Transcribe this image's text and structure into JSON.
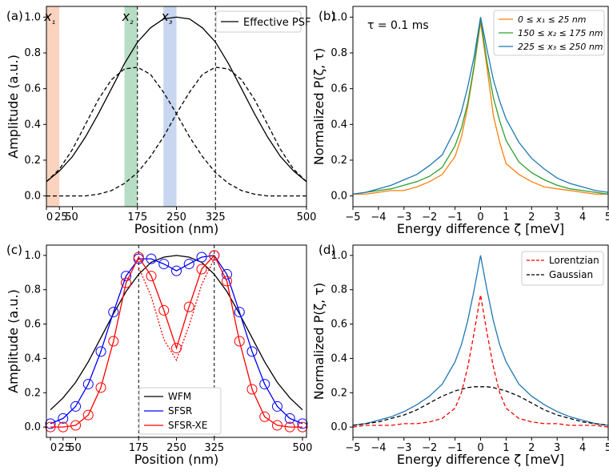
{
  "panel_labels": [
    "(a)",
    "(b)",
    "(c)",
    "(d)"
  ],
  "colors": {
    "orange": "#ff7f0e",
    "green": "#2ca02c",
    "blue": "#1f77b4",
    "black": "#000000",
    "sfsr_blue": "#0000ff",
    "red": "#ff0000",
    "band_x1": "#f7c4a8",
    "band_x2": "#9fd1b0",
    "band_x3": "#b5c8ea"
  },
  "chart_data": [
    {
      "panel": "(a)",
      "type": "line",
      "xlabel": "Position (nm)",
      "ylabel": "Amplitude (a.u.)",
      "xlim": [
        0,
        500
      ],
      "ylim": [
        -0.06,
        1.06
      ],
      "x_ticks": [
        0,
        25,
        50,
        175,
        250,
        325,
        500
      ],
      "x_tick_labels": [
        "0",
        "25",
        "50",
        "175",
        "250",
        "325",
        "500"
      ],
      "y_ticks": [
        0.0,
        0.2,
        0.4,
        0.6,
        0.8,
        1.0
      ],
      "y_tick_labels": [
        "0.0",
        "0.2",
        "0.4",
        "0.6",
        "0.8",
        "1.0"
      ],
      "legend": {
        "position": "top-right",
        "entries": [
          "Effective PSF"
        ]
      },
      "bands": [
        {
          "label": "x₁",
          "from": 0,
          "to": 25
        },
        {
          "label": "x₂",
          "from": 150,
          "to": 175
        },
        {
          "label": "x₃",
          "from": 225,
          "to": 250
        }
      ],
      "vlines": [
        175,
        325
      ],
      "series": [
        {
          "name": "Effective PSF",
          "style": "solid",
          "x": [
            0,
            25,
            50,
            75,
            100,
            125,
            150,
            175,
            200,
            225,
            250,
            275,
            300,
            325,
            350,
            375,
            400,
            425,
            450,
            475,
            500
          ],
          "y": [
            0.08,
            0.14,
            0.22,
            0.33,
            0.46,
            0.6,
            0.74,
            0.86,
            0.94,
            0.99,
            1.0,
            0.99,
            0.94,
            0.86,
            0.74,
            0.6,
            0.46,
            0.33,
            0.22,
            0.14,
            0.08
          ]
        },
        {
          "style": "dashed",
          "x": [
            0,
            25,
            50,
            75,
            100,
            125,
            150,
            175,
            200,
            225,
            250,
            275,
            300,
            325,
            350,
            375,
            400,
            425,
            450,
            475,
            500
          ],
          "y": [
            0.08,
            0.15,
            0.26,
            0.4,
            0.54,
            0.65,
            0.71,
            0.72,
            0.68,
            0.58,
            0.46,
            0.33,
            0.22,
            0.13,
            0.07,
            0.03,
            0.01,
            0.0,
            0.0,
            0.0,
            0.0
          ]
        },
        {
          "style": "dashed",
          "x": [
            0,
            25,
            50,
            75,
            100,
            125,
            150,
            175,
            200,
            225,
            250,
            275,
            300,
            325,
            350,
            375,
            400,
            425,
            450,
            475,
            500
          ],
          "y": [
            0.0,
            0.0,
            0.0,
            0.0,
            0.01,
            0.03,
            0.07,
            0.13,
            0.22,
            0.33,
            0.46,
            0.58,
            0.68,
            0.72,
            0.71,
            0.65,
            0.54,
            0.4,
            0.26,
            0.15,
            0.08
          ]
        }
      ]
    },
    {
      "panel": "(b)",
      "type": "line",
      "xlabel": "Energy difference ζ [meV]",
      "ylabel": "Normalized P(ζ, τ)",
      "annotation": "τ = 0.1 ms",
      "xlim": [
        -5,
        5
      ],
      "ylim": [
        -0.06,
        1.06
      ],
      "x_ticks": [
        -5,
        -4,
        -3,
        -2,
        -1,
        0,
        1,
        2,
        3,
        4,
        5
      ],
      "x_tick_labels": [
        "−5",
        "−4",
        "−3",
        "−2",
        "−1",
        "0",
        "1",
        "2",
        "3",
        "4",
        "5"
      ],
      "y_ticks": [
        0.0,
        0.2,
        0.4,
        0.6,
        0.8,
        1.0
      ],
      "y_tick_labels": [
        "0.0",
        "0.2",
        "0.4",
        "0.6",
        "0.8",
        "1.0"
      ],
      "legend": {
        "position": "top-right"
      },
      "series": [
        {
          "name": "0 ≤ x₁ ≤ 25 nm",
          "color": "#ff7f0e",
          "x": [
            -5,
            -4.5,
            -4,
            -3.5,
            -3,
            -2.5,
            -2,
            -1.5,
            -1,
            -0.75,
            -0.5,
            -0.25,
            0,
            0.25,
            0.5,
            0.75,
            1,
            1.5,
            2,
            2.5,
            3,
            3.5,
            4,
            4.5,
            5
          ],
          "y": [
            0.01,
            0.01,
            0.02,
            0.03,
            0.03,
            0.05,
            0.08,
            0.12,
            0.22,
            0.33,
            0.5,
            0.72,
            0.97,
            0.72,
            0.45,
            0.3,
            0.18,
            0.12,
            0.08,
            0.05,
            0.04,
            0.03,
            0.02,
            0.01,
            0.01
          ]
        },
        {
          "name": "150 ≤ x₂ ≤ 175 nm",
          "color": "#2ca02c",
          "x": [
            -5,
            -4.5,
            -4,
            -3.5,
            -3,
            -2.5,
            -2,
            -1.5,
            -1,
            -0.75,
            -0.5,
            -0.25,
            0,
            0.25,
            0.5,
            0.75,
            1,
            1.5,
            2,
            2.5,
            3,
            3.5,
            4,
            4.5,
            5
          ],
          "y": [
            0.01,
            0.02,
            0.03,
            0.04,
            0.06,
            0.08,
            0.11,
            0.16,
            0.28,
            0.38,
            0.52,
            0.73,
            0.99,
            0.75,
            0.55,
            0.42,
            0.31,
            0.19,
            0.13,
            0.09,
            0.06,
            0.04,
            0.03,
            0.02,
            0.01
          ]
        },
        {
          "name": "225 ≤ x₃ ≤ 250 nm",
          "color": "#1f77b4",
          "x": [
            -5,
            -4.5,
            -4,
            -3.5,
            -3,
            -2.5,
            -2,
            -1.5,
            -1,
            -0.75,
            -0.5,
            -0.25,
            0,
            0.25,
            0.5,
            0.75,
            1,
            1.5,
            2,
            2.5,
            3,
            3.5,
            4,
            4.5,
            5
          ],
          "y": [
            0.01,
            0.02,
            0.04,
            0.06,
            0.09,
            0.12,
            0.17,
            0.23,
            0.37,
            0.47,
            0.61,
            0.78,
            1.0,
            0.82,
            0.65,
            0.53,
            0.43,
            0.3,
            0.21,
            0.15,
            0.1,
            0.07,
            0.05,
            0.03,
            0.02
          ]
        }
      ]
    },
    {
      "panel": "(c)",
      "type": "line",
      "xlabel": "Position (nm)",
      "ylabel": "Amplitude (a.u.)",
      "xlim": [
        -8,
        508
      ],
      "ylim": [
        -0.06,
        1.06
      ],
      "x_ticks": [
        0,
        25,
        50,
        175,
        250,
        325,
        500
      ],
      "x_tick_labels": [
        "0",
        "25",
        "50",
        "175",
        "250",
        "325",
        "500"
      ],
      "y_ticks": [
        0.0,
        0.2,
        0.4,
        0.6,
        0.8,
        1.0
      ],
      "y_tick_labels": [
        "0.0",
        "0.2",
        "0.4",
        "0.6",
        "0.8",
        "1.0"
      ],
      "legend": {
        "position": "bottom-center",
        "entries": [
          "WFM",
          "SFSR",
          "SFSR-XE"
        ]
      },
      "vlines": [
        175,
        325
      ],
      "series": [
        {
          "name": "WFM",
          "color": "#000000",
          "x": [
            0,
            25,
            50,
            75,
            100,
            125,
            150,
            175,
            200,
            225,
            250,
            275,
            300,
            325,
            350,
            375,
            400,
            425,
            450,
            475,
            500
          ],
          "y": [
            0.1,
            0.17,
            0.26,
            0.38,
            0.52,
            0.66,
            0.79,
            0.89,
            0.96,
            0.99,
            1.0,
            0.99,
            0.96,
            0.89,
            0.79,
            0.66,
            0.52,
            0.38,
            0.26,
            0.17,
            0.1
          ]
        },
        {
          "name": "SFSR",
          "color": "#0000ff",
          "markers": "circle",
          "x": [
            0,
            25,
            50,
            75,
            100,
            125,
            150,
            175,
            200,
            225,
            250,
            275,
            300,
            325,
            350,
            375,
            400,
            425,
            450,
            475,
            500
          ],
          "y": [
            0.02,
            0.05,
            0.12,
            0.25,
            0.44,
            0.67,
            0.88,
            0.98,
            0.98,
            0.95,
            0.91,
            0.95,
            0.99,
            1.0,
            0.89,
            0.67,
            0.44,
            0.25,
            0.12,
            0.05,
            0.02
          ]
        },
        {
          "name": "SFSR-XE",
          "color": "#ff0000",
          "markers": "circle",
          "x": [
            0,
            25,
            50,
            75,
            100,
            125,
            150,
            175,
            200,
            225,
            250,
            275,
            300,
            325,
            350,
            375,
            400,
            425,
            450,
            475,
            500
          ],
          "y": [
            0.0,
            0.0,
            0.01,
            0.07,
            0.23,
            0.5,
            0.84,
            0.99,
            0.88,
            0.68,
            0.46,
            0.7,
            0.92,
            1.0,
            0.85,
            0.5,
            0.22,
            0.06,
            0.01,
            0.0,
            0.0
          ]
        },
        {
          "style": "dotted",
          "color": "#ff0000",
          "x": [
            175,
            200,
            225,
            250,
            275,
            300,
            325
          ],
          "y": [
            0.93,
            0.76,
            0.51,
            0.39,
            0.59,
            0.83,
            0.98
          ]
        }
      ]
    },
    {
      "panel": "(d)",
      "type": "line",
      "xlabel": "Energy difference ζ [meV]",
      "ylabel": "Normalized P(ζ, τ)",
      "xlim": [
        -5,
        5
      ],
      "ylim": [
        -0.06,
        1.06
      ],
      "x_ticks": [
        -5,
        -4,
        -3,
        -2,
        -1,
        0,
        1,
        2,
        3,
        4,
        5
      ],
      "x_tick_labels": [
        "−5",
        "−4",
        "−3",
        "−2",
        "−1",
        "0",
        "1",
        "2",
        "3",
        "4",
        "5"
      ],
      "y_ticks": [
        0.0,
        0.2,
        0.4,
        0.6,
        0.8,
        1.0
      ],
      "y_tick_labels": [
        "0.0",
        "0.2",
        "0.4",
        "0.6",
        "0.8",
        "1.0"
      ],
      "legend": {
        "position": "top-right",
        "entries": [
          "Lorentzian",
          "Gaussian"
        ]
      },
      "series": [
        {
          "color": "#1f77b4",
          "style": "solid",
          "x": [
            -5,
            -4.5,
            -4,
            -3.5,
            -3,
            -2.5,
            -2,
            -1.5,
            -1,
            -0.75,
            -0.5,
            -0.25,
            0,
            0.25,
            0.5,
            0.75,
            1,
            1.5,
            2,
            2.5,
            3,
            3.5,
            4,
            4.5,
            5
          ],
          "y": [
            0.01,
            0.02,
            0.04,
            0.06,
            0.09,
            0.13,
            0.18,
            0.25,
            0.38,
            0.48,
            0.62,
            0.8,
            1.0,
            0.8,
            0.62,
            0.48,
            0.38,
            0.25,
            0.18,
            0.13,
            0.09,
            0.06,
            0.04,
            0.02,
            0.01
          ]
        },
        {
          "name": "Lorentzian",
          "color": "#ff0000",
          "style": "dashed",
          "x": [
            -5,
            -4.5,
            -4,
            -3.5,
            -3,
            -2.5,
            -2,
            -1.5,
            -1,
            -0.75,
            -0.5,
            -0.25,
            0,
            0.25,
            0.5,
            0.75,
            1,
            1.5,
            2,
            2.5,
            3,
            3.5,
            4,
            4.5,
            5
          ],
          "y": [
            0.0,
            0.01,
            0.01,
            0.01,
            0.02,
            0.02,
            0.03,
            0.05,
            0.11,
            0.2,
            0.35,
            0.55,
            0.77,
            0.55,
            0.35,
            0.2,
            0.11,
            0.05,
            0.03,
            0.02,
            0.02,
            0.01,
            0.01,
            0.01,
            0.0
          ]
        },
        {
          "name": "Gaussian",
          "color": "#000000",
          "style": "dashed",
          "x": [
            -5,
            -4.5,
            -4,
            -3.5,
            -3,
            -2.5,
            -2,
            -1.5,
            -1,
            -0.75,
            -0.5,
            -0.25,
            0,
            0.25,
            0.5,
            0.75,
            1,
            1.5,
            2,
            2.5,
            3,
            3.5,
            4,
            4.5,
            5
          ],
          "y": [
            0.01,
            0.02,
            0.03,
            0.05,
            0.07,
            0.1,
            0.14,
            0.18,
            0.21,
            0.22,
            0.23,
            0.235,
            0.235,
            0.235,
            0.23,
            0.22,
            0.21,
            0.18,
            0.14,
            0.1,
            0.07,
            0.05,
            0.03,
            0.02,
            0.01
          ]
        }
      ]
    }
  ]
}
